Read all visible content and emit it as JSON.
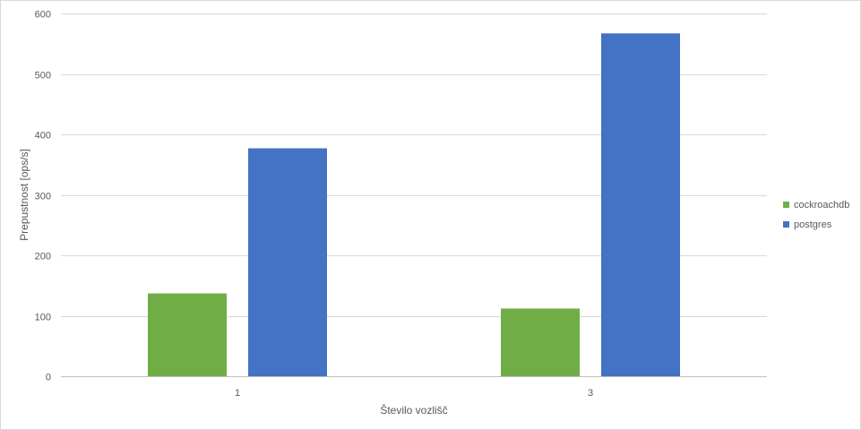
{
  "chart_data": {
    "type": "bar",
    "title": "",
    "xlabel": "Število vozlišč",
    "ylabel": "Prepustnost [ops/s]",
    "categories": [
      "1",
      "3"
    ],
    "series": [
      {
        "name": "cockroachdb",
        "color": "#70ad47",
        "values": [
          137,
          112
        ]
      },
      {
        "name": "postgres",
        "color": "#4472c4",
        "values": [
          377,
          567
        ]
      }
    ],
    "ylim": [
      0,
      600
    ],
    "yticks": [
      0,
      100,
      200,
      300,
      400,
      500,
      600
    ],
    "grid": true,
    "legend_position": "right"
  }
}
